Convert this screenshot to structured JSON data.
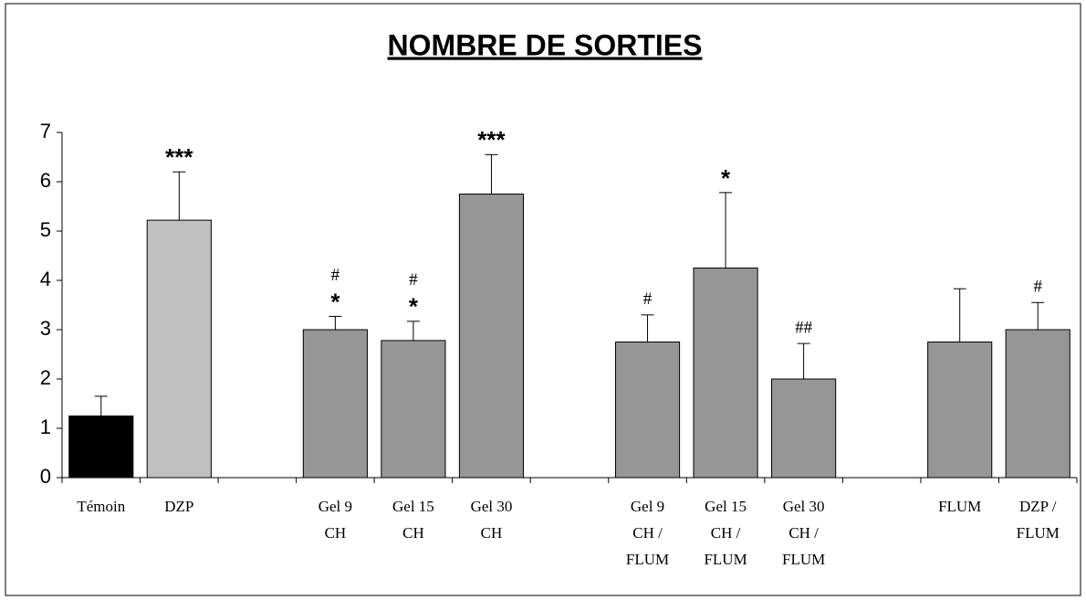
{
  "chart_data": {
    "type": "bar",
    "title": "NOMBRE DE SORTIES",
    "categories": [
      [
        "Témoin"
      ],
      [
        "DZP"
      ],
      null,
      [
        "Gel 9",
        "CH"
      ],
      [
        "Gel 15",
        "CH"
      ],
      [
        "Gel 30",
        "CH"
      ],
      null,
      [
        "Gel 9",
        "CH /",
        "FLUM"
      ],
      [
        "Gel 15",
        "CH /",
        "FLUM"
      ],
      [
        "Gel 30",
        "CH /",
        "FLUM"
      ],
      null,
      [
        "FLUM"
      ],
      [
        "DZP /",
        "FLUM"
      ]
    ],
    "values": [
      1.25,
      5.22,
      null,
      3.0,
      2.78,
      5.75,
      null,
      2.75,
      4.25,
      2.0,
      null,
      2.75,
      3.0
    ],
    "errors": [
      0.4,
      0.98,
      null,
      0.27,
      0.39,
      0.8,
      null,
      0.55,
      1.53,
      0.72,
      null,
      1.08,
      0.55
    ],
    "colors": [
      "#000000",
      "#c0c0c0",
      null,
      "#969696",
      "#969696",
      "#969696",
      null,
      "#969696",
      "#969696",
      "#969696",
      null,
      "#969696",
      "#969696"
    ],
    "annotations": [
      null,
      [
        "***"
      ],
      null,
      [
        "#",
        "*"
      ],
      [
        "#",
        "*"
      ],
      [
        "***"
      ],
      null,
      [
        "#"
      ],
      [
        "*"
      ],
      [
        "##"
      ],
      null,
      null,
      [
        "#"
      ]
    ],
    "ylim": [
      0,
      7
    ],
    "yticks": [
      0,
      1,
      2,
      3,
      4,
      5,
      6,
      7
    ]
  }
}
